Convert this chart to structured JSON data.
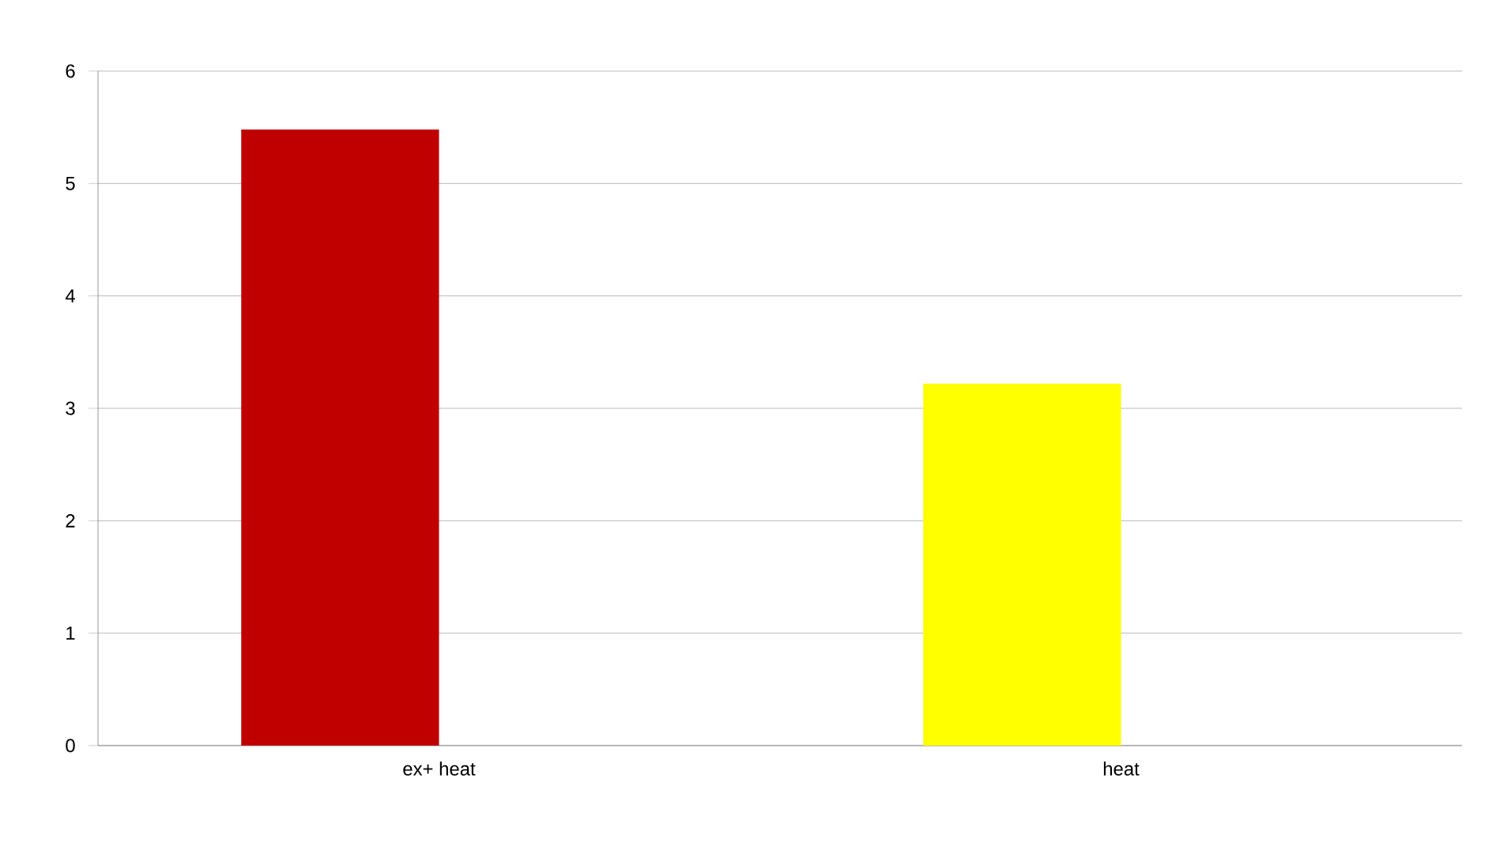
{
  "chart_data": {
    "type": "bar",
    "categories": [
      "ex+ heat",
      "heat"
    ],
    "values": [
      5.48,
      3.22
    ],
    "colors": [
      "#c00000",
      "#ffff00"
    ],
    "ylim": [
      0,
      6
    ],
    "yticks": [
      0,
      1,
      2,
      3,
      4,
      5,
      6
    ],
    "grid": "y"
  }
}
